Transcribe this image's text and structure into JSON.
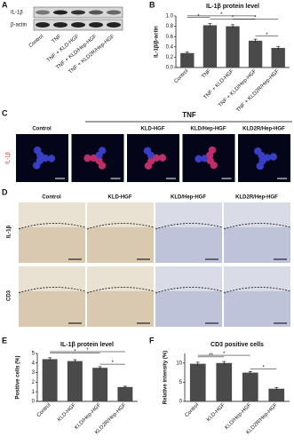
{
  "panel_labels": [
    "A",
    "B",
    "C",
    "D",
    "E",
    "F"
  ],
  "blot": {
    "rows": [
      "IL-1β",
      "β-actin"
    ],
    "lanes": [
      "Control",
      "TNF",
      "TNF + KLD-HGF",
      "TNF + KLD/Hep-HGF",
      "TNF + KLD2R/Hep-HGF"
    ]
  },
  "fluorescence": {
    "group": "TNF",
    "marker": "IL-1β",
    "columns": [
      "Control",
      null,
      "KLD-HGF",
      "KLD/Hep-HGF",
      "KLD2R/Hep-HGF"
    ]
  },
  "histology": {
    "columns": [
      "Control",
      "KLD-HGF",
      "KLD/Hep-HGF",
      "KLD2R/Hep-HGF"
    ],
    "rows": [
      "IL-1β",
      "CD3"
    ]
  },
  "chart_data": [
    {
      "type": "bar",
      "title": "IL-1β protein level",
      "y_label": "IL-1β/β-actin",
      "categories": [
        "Control",
        "TNF",
        "TNF + KLD-HGF",
        "TNF + KLD/Hep-HGF",
        "TNF + KLD2R/Hep-HGF"
      ],
      "values": [
        0.28,
        0.82,
        0.8,
        0.52,
        0.38
      ],
      "errors": [
        0.02,
        0.03,
        0.03,
        0.03,
        0.03
      ],
      "color": "#4a4a4a",
      "ylim": [
        0,
        1
      ],
      "yticks": [
        {
          "value": 0,
          "label": "0.0"
        },
        {
          "value": 0.2,
          "label": "0.2"
        },
        {
          "value": 0.4,
          "label": "0.4"
        },
        {
          "value": 0.6,
          "label": "0.6"
        },
        {
          "value": 0.8,
          "label": "0.8"
        },
        {
          "value": 1,
          "label": "1.0"
        }
      ],
      "annotations": [
        "*",
        "*",
        "*",
        "*",
        "*"
      ]
    },
    {
      "type": "bar",
      "title": "IL-1β protein level",
      "y_label": "Positive cells (%)",
      "categories": [
        "Control",
        "KLD-HGF",
        "KLD/Hep-HGF",
        "KLD2R/Hep-HGF"
      ],
      "values": [
        4.4,
        4.2,
        3.5,
        1.5
      ],
      "errors": [
        0.15,
        0.15,
        0.12,
        0.08
      ],
      "color": "#4a4a4a",
      "ylim": [
        0,
        5
      ],
      "yticks": [
        0,
        1,
        2,
        3,
        4,
        5
      ],
      "annotations": [
        "*",
        "*",
        "*"
      ]
    },
    {
      "type": "bar",
      "title": "CD3 positive cells",
      "y_label": "Relative intensity (%)",
      "categories": [
        "Control",
        "KLD-HGF",
        "KLD/Hep-HGF",
        "KLD2R/Hep-HGF"
      ],
      "values": [
        9.8,
        10,
        7.5,
        3.3
      ],
      "errors": [
        0.4,
        0.4,
        0.3,
        0.3
      ],
      "color": "#4a4a4a",
      "ylim": [
        0,
        12.5
      ],
      "yticks": [
        0,
        5,
        10
      ],
      "annotations": [
        "**",
        "*",
        "*"
      ]
    }
  ]
}
